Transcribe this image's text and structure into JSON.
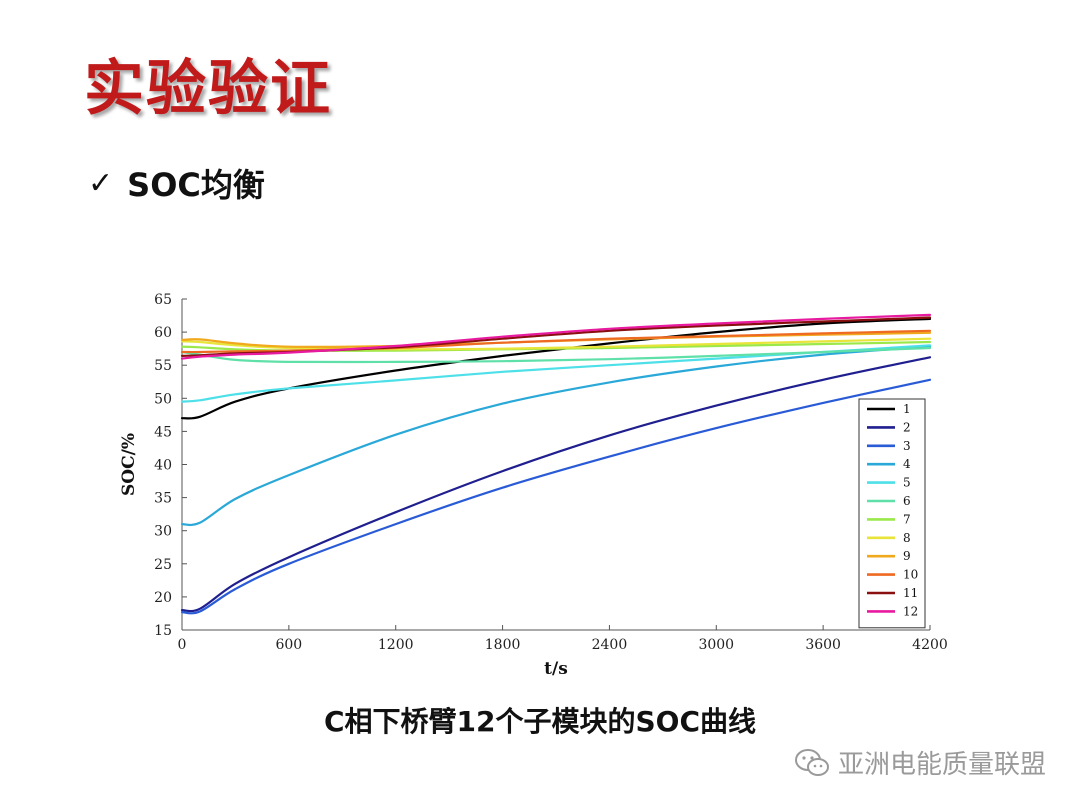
{
  "slide": {
    "title": "实验验证",
    "bullet_mark": "✓",
    "bullet_text": "SOC均衡",
    "caption": "C相下桥臂12个子模块的SOC曲线",
    "watermark": "亚洲电能质量联盟"
  },
  "chart_data": {
    "type": "line",
    "xlabel": "t/s",
    "ylabel": "SOC/%",
    "xlim": [
      0,
      4200
    ],
    "ylim": [
      15,
      65
    ],
    "xticks": [
      0,
      600,
      1200,
      1800,
      2400,
      3000,
      3600,
      4200
    ],
    "yticks": [
      15,
      20,
      25,
      30,
      35,
      40,
      45,
      50,
      55,
      60,
      65
    ],
    "grid": false,
    "legend_position": "right",
    "x": [
      0,
      100,
      300,
      600,
      1200,
      1800,
      2400,
      3000,
      3600,
      4200
    ],
    "series": [
      {
        "name": "1",
        "color": "#000000",
        "values": [
          47.0,
          47.2,
          49.5,
          51.5,
          54.2,
          56.4,
          58.3,
          60.0,
          61.3,
          62.0
        ]
      },
      {
        "name": "2",
        "color": "#1f1f8f",
        "values": [
          18.0,
          18.2,
          22.0,
          26.0,
          32.8,
          39.0,
          44.4,
          48.9,
          52.8,
          56.2
        ]
      },
      {
        "name": "3",
        "color": "#2a5bd6",
        "values": [
          17.7,
          17.8,
          21.2,
          25.0,
          31.0,
          36.5,
          41.2,
          45.5,
          49.3,
          52.8
        ]
      },
      {
        "name": "4",
        "color": "#2aa8d8",
        "values": [
          31.0,
          31.2,
          34.8,
          38.4,
          44.5,
          49.2,
          52.4,
          54.8,
          56.6,
          57.8
        ]
      },
      {
        "name": "5",
        "color": "#4de0e8",
        "values": [
          49.5,
          49.7,
          50.6,
          51.5,
          52.7,
          54.0,
          55.0,
          56.0,
          57.0,
          58.0
        ]
      },
      {
        "name": "6",
        "color": "#5ee0a8",
        "values": [
          57.0,
          56.6,
          55.8,
          55.5,
          55.5,
          55.6,
          55.9,
          56.4,
          57.0,
          57.6
        ]
      },
      {
        "name": "7",
        "color": "#9ae84a",
        "values": [
          57.8,
          57.7,
          57.4,
          57.2,
          57.2,
          57.4,
          57.6,
          57.9,
          58.2,
          58.5
        ]
      },
      {
        "name": "8",
        "color": "#e8e43a",
        "values": [
          58.6,
          58.5,
          58.0,
          57.6,
          57.4,
          57.5,
          57.8,
          58.2,
          58.6,
          59.0
        ]
      },
      {
        "name": "9",
        "color": "#f0a81c",
        "values": [
          58.8,
          58.9,
          58.3,
          57.8,
          57.9,
          58.4,
          58.9,
          59.3,
          59.6,
          59.9
        ]
      },
      {
        "name": "10",
        "color": "#ee6a22",
        "values": [
          57.0,
          57.0,
          57.1,
          57.2,
          57.6,
          58.4,
          59.0,
          59.4,
          59.8,
          60.2
        ]
      },
      {
        "name": "11",
        "color": "#8a1010",
        "values": [
          56.4,
          56.5,
          56.8,
          57.0,
          57.7,
          59.0,
          60.2,
          61.0,
          61.6,
          62.2
        ]
      },
      {
        "name": "12",
        "color": "#e81aa0",
        "values": [
          56.0,
          56.3,
          56.6,
          56.9,
          57.9,
          59.3,
          60.5,
          61.3,
          62.0,
          62.6
        ]
      }
    ]
  }
}
